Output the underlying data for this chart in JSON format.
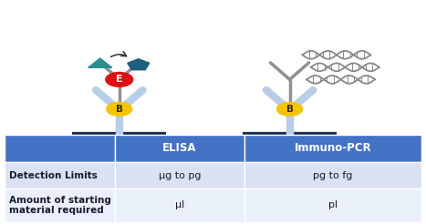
{
  "table_header_bg": "#4472C4",
  "table_row1_bg": "#D9E1F2",
  "table_row2_bg": "#EAF0FA",
  "table_header_fg": "#FFFFFF",
  "table_body_fg": "#1A1A2E",
  "col_headers": [
    "",
    "ELISA",
    "Immuno-PCR"
  ],
  "row1_label": "Detection Limits",
  "row1_vals": [
    "μg to pg",
    "pg to fg"
  ],
  "row2_label": "Amount of starting\nmaterial required",
  "row2_vals": [
    "μl",
    "pl"
  ],
  "antibody_y_color": "#B8CEE8",
  "secondary_ab_color": "#909090",
  "enzyme_color": "#DD1111",
  "biotin_color": "#F5C400",
  "teal_tri_color": "#2A8F8F",
  "teal_pent_color": "#1E5F80",
  "surface_color": "#1A2E50",
  "dna_color": "#888888",
  "background": "#FFFFFF",
  "fig_width": 4.67,
  "fig_height": 2.46,
  "dpi": 100
}
